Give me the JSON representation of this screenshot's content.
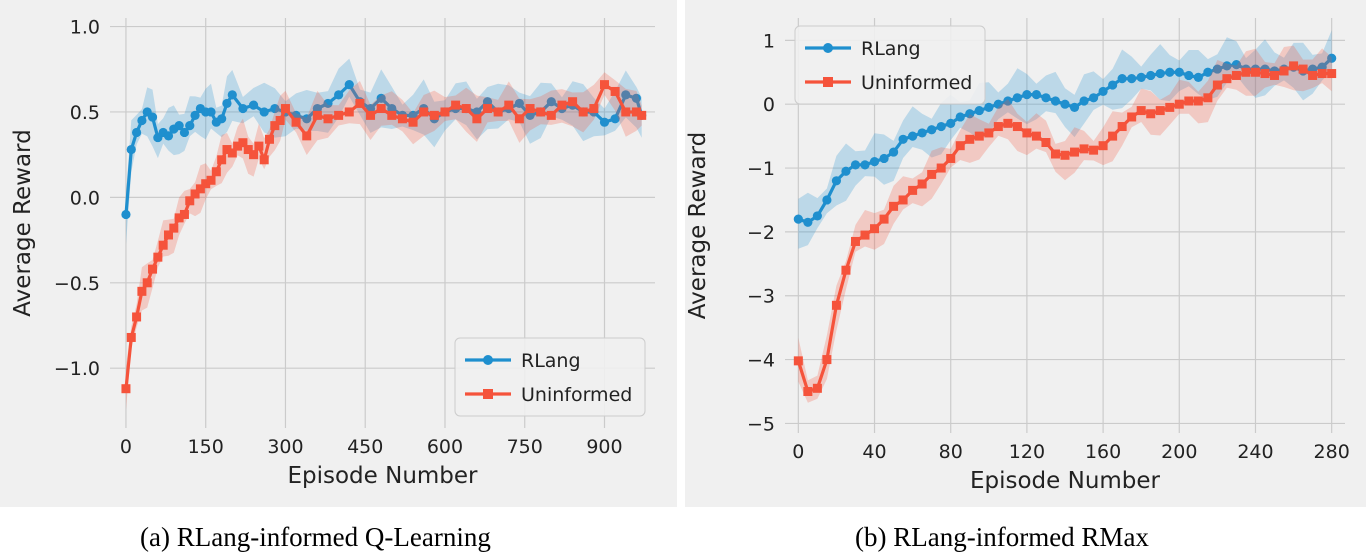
{
  "chart_data": [
    {
      "type": "line",
      "caption": "(a) RLang-informed Q-Learning",
      "title": "",
      "xlabel": "Episode Number",
      "ylabel": "Average Reward",
      "xlim": [
        -30,
        995
      ],
      "ylim": [
        -1.35,
        1.05
      ],
      "xticks": [
        0,
        150,
        300,
        450,
        600,
        750,
        900
      ],
      "xtick_labels": [
        "0",
        "150",
        "300",
        "450",
        "600",
        "750",
        "900"
      ],
      "yticks": [
        -1.0,
        -0.5,
        0.0,
        0.5,
        1.0
      ],
      "ytick_labels": [
        "−1.0",
        "−0.5",
        "0.0",
        "0.5",
        "1.0"
      ],
      "grid": true,
      "legend": "bottom-right",
      "shaded_band": true,
      "series": [
        {
          "name": "RLang",
          "marker": "circle",
          "color": "#1f8fce",
          "x": [
            0,
            10,
            20,
            30,
            40,
            50,
            60,
            70,
            80,
            90,
            100,
            110,
            120,
            130,
            140,
            150,
            160,
            170,
            180,
            190,
            200,
            220,
            240,
            260,
            280,
            300,
            320,
            340,
            360,
            380,
            400,
            420,
            440,
            460,
            480,
            500,
            520,
            540,
            560,
            580,
            600,
            620,
            640,
            660,
            680,
            700,
            720,
            740,
            760,
            780,
            800,
            820,
            840,
            860,
            880,
            900,
            920,
            940,
            960,
            970
          ],
          "y": [
            -0.1,
            0.28,
            0.38,
            0.45,
            0.5,
            0.47,
            0.35,
            0.38,
            0.36,
            0.4,
            0.42,
            0.38,
            0.42,
            0.48,
            0.52,
            0.5,
            0.5,
            0.44,
            0.46,
            0.55,
            0.6,
            0.52,
            0.54,
            0.5,
            0.52,
            0.5,
            0.48,
            0.46,
            0.52,
            0.55,
            0.6,
            0.66,
            0.56,
            0.52,
            0.58,
            0.52,
            0.48,
            0.48,
            0.52,
            0.46,
            0.5,
            0.52,
            0.52,
            0.5,
            0.56,
            0.5,
            0.52,
            0.55,
            0.48,
            0.5,
            0.56,
            0.52,
            0.54,
            0.5,
            0.5,
            0.44,
            0.46,
            0.6,
            0.58,
            0.48
          ]
        },
        {
          "name": "Uninformed",
          "marker": "square",
          "color": "#f5533b",
          "x": [
            0,
            10,
            20,
            30,
            40,
            50,
            60,
            70,
            80,
            90,
            100,
            110,
            120,
            130,
            140,
            150,
            160,
            170,
            180,
            190,
            200,
            210,
            220,
            230,
            240,
            250,
            260,
            270,
            280,
            290,
            300,
            320,
            340,
            360,
            380,
            400,
            420,
            440,
            460,
            480,
            500,
            520,
            540,
            560,
            580,
            600,
            620,
            640,
            660,
            680,
            700,
            720,
            740,
            760,
            780,
            800,
            820,
            840,
            860,
            880,
            900,
            920,
            940,
            960,
            970
          ],
          "y": [
            -1.12,
            -0.82,
            -0.7,
            -0.55,
            -0.5,
            -0.42,
            -0.35,
            -0.28,
            -0.22,
            -0.18,
            -0.12,
            -0.1,
            -0.02,
            0.02,
            0.05,
            0.08,
            0.1,
            0.15,
            0.22,
            0.28,
            0.26,
            0.3,
            0.32,
            0.28,
            0.25,
            0.3,
            0.22,
            0.34,
            0.42,
            0.45,
            0.52,
            0.44,
            0.36,
            0.48,
            0.46,
            0.48,
            0.5,
            0.55,
            0.48,
            0.52,
            0.48,
            0.46,
            0.44,
            0.5,
            0.48,
            0.5,
            0.54,
            0.52,
            0.46,
            0.52,
            0.5,
            0.54,
            0.46,
            0.52,
            0.5,
            0.48,
            0.54,
            0.56,
            0.5,
            0.52,
            0.66,
            0.62,
            0.5,
            0.5,
            0.48
          ]
        }
      ]
    },
    {
      "type": "line",
      "caption": "(b) RLang-informed RMax",
      "title": "",
      "xlabel": "Episode Number",
      "ylabel": "Average Reward",
      "xlim": [
        -7,
        287
      ],
      "ylim": [
        -5.15,
        1.35
      ],
      "xticks": [
        0,
        40,
        80,
        120,
        160,
        200,
        240,
        280
      ],
      "xtick_labels": [
        "0",
        "40",
        "80",
        "120",
        "160",
        "200",
        "240",
        "280"
      ],
      "yticks": [
        -5,
        -4,
        -3,
        -2,
        -1,
        0,
        1
      ],
      "ytick_labels": [
        "−5",
        "−4",
        "−3",
        "−2",
        "−1",
        "0",
        "1"
      ],
      "grid": true,
      "legend": "top-left",
      "shaded_band": true,
      "series": [
        {
          "name": "RLang",
          "marker": "circle",
          "color": "#1f8fce",
          "x": [
            0,
            5,
            10,
            15,
            20,
            25,
            30,
            35,
            40,
            45,
            50,
            55,
            60,
            65,
            70,
            75,
            80,
            85,
            90,
            95,
            100,
            105,
            110,
            115,
            120,
            125,
            130,
            135,
            140,
            145,
            150,
            155,
            160,
            165,
            170,
            175,
            180,
            185,
            190,
            195,
            200,
            205,
            210,
            215,
            220,
            225,
            230,
            235,
            240,
            245,
            250,
            255,
            260,
            265,
            270,
            275,
            280
          ],
          "y": [
            -1.8,
            -1.85,
            -1.75,
            -1.5,
            -1.2,
            -1.05,
            -0.95,
            -0.95,
            -0.9,
            -0.85,
            -0.75,
            -0.55,
            -0.5,
            -0.45,
            -0.4,
            -0.35,
            -0.3,
            -0.2,
            -0.15,
            -0.1,
            -0.05,
            0.0,
            0.05,
            0.1,
            0.15,
            0.15,
            0.1,
            0.05,
            0.0,
            -0.05,
            0.05,
            0.1,
            0.2,
            0.3,
            0.4,
            0.4,
            0.42,
            0.45,
            0.48,
            0.5,
            0.5,
            0.45,
            0.42,
            0.5,
            0.55,
            0.6,
            0.62,
            0.55,
            0.55,
            0.55,
            0.52,
            0.55,
            0.58,
            0.52,
            0.55,
            0.58,
            0.72
          ]
        },
        {
          "name": "Uninformed",
          "marker": "square",
          "color": "#f5533b",
          "x": [
            0,
            5,
            10,
            15,
            20,
            25,
            30,
            35,
            40,
            45,
            50,
            55,
            60,
            65,
            70,
            75,
            80,
            85,
            90,
            95,
            100,
            105,
            110,
            115,
            120,
            125,
            130,
            135,
            140,
            145,
            150,
            155,
            160,
            165,
            170,
            175,
            180,
            185,
            190,
            195,
            200,
            205,
            210,
            215,
            220,
            225,
            230,
            235,
            240,
            245,
            250,
            255,
            260,
            265,
            270,
            275,
            280
          ],
          "y": [
            -4.02,
            -4.5,
            -4.45,
            -4.0,
            -3.15,
            -2.6,
            -2.15,
            -2.05,
            -1.95,
            -1.8,
            -1.6,
            -1.5,
            -1.35,
            -1.25,
            -1.1,
            -1.0,
            -0.85,
            -0.65,
            -0.55,
            -0.5,
            -0.45,
            -0.35,
            -0.3,
            -0.35,
            -0.45,
            -0.5,
            -0.6,
            -0.78,
            -0.8,
            -0.75,
            -0.7,
            -0.72,
            -0.65,
            -0.5,
            -0.35,
            -0.2,
            -0.1,
            -0.15,
            -0.1,
            -0.05,
            0.0,
            0.05,
            0.05,
            0.1,
            0.3,
            0.4,
            0.45,
            0.5,
            0.5,
            0.48,
            0.45,
            0.52,
            0.6,
            0.55,
            0.45,
            0.48,
            0.48
          ]
        }
      ]
    }
  ]
}
